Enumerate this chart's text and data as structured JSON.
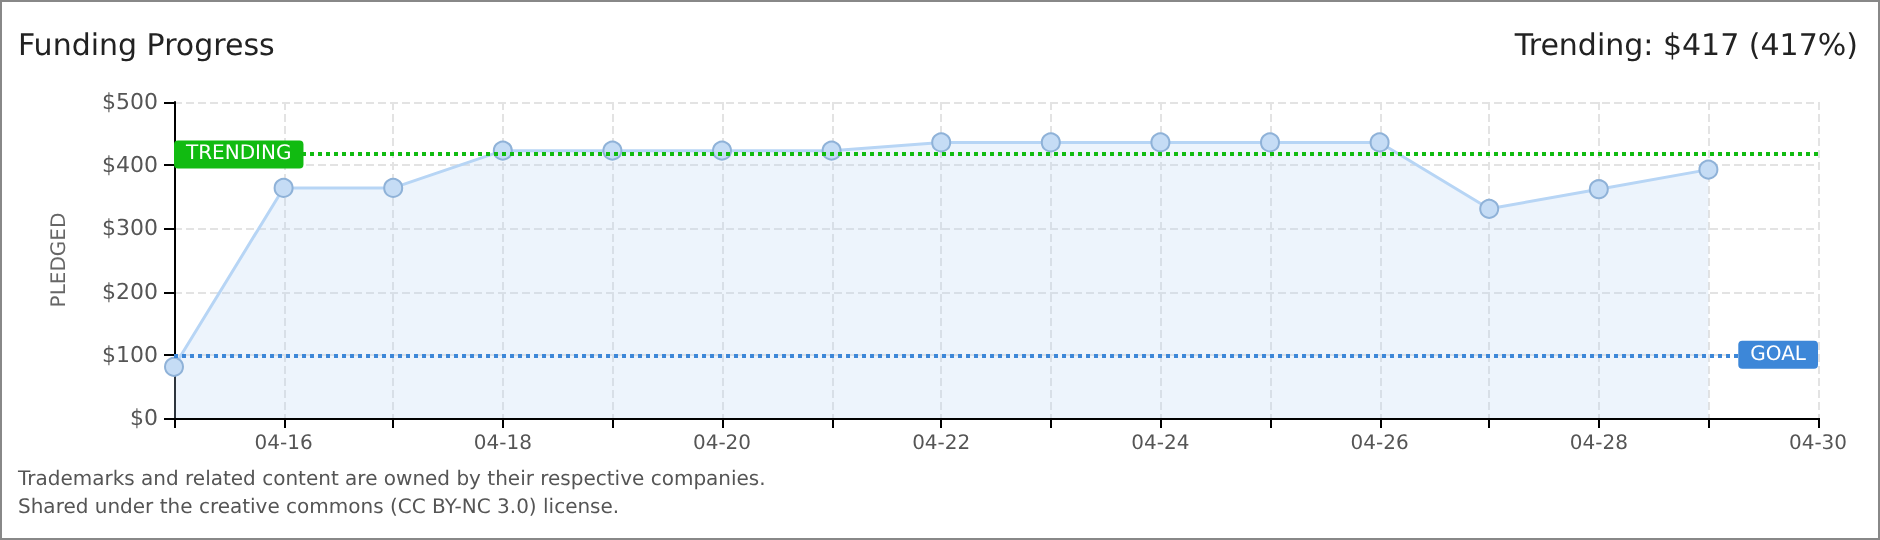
{
  "chart_data": {
    "type": "area",
    "title": "Funding Progress",
    "ylabel": "PLEDGED",
    "annotations": [
      "Trending: $417 (417%)",
      "Trademarks and related content are owned by their respective companies.",
      "Shared under the creative commons (CC BY-NC 3.0) license."
    ],
    "x": [
      "--04-15",
      "--04-16",
      "--04-17",
      "--04-18",
      "--04-19",
      "--04-20",
      "--04-21",
      "--04-22",
      "--04-23",
      "--04-24",
      "--04-25",
      "--04-26",
      "--04-27",
      "--04-28",
      "--04-29"
    ],
    "series": [
      {
        "color": "#b7d5f5",
        "values": [
          81,
          364,
          364,
          423,
          423,
          423,
          423,
          436,
          436,
          436,
          436,
          436,
          331,
          362,
          393
        ]
      }
    ],
    "xlim": [
      "--04-15",
      "--04-30"
    ],
    "xticks": [
      {
        "value": "--04-15",
        "label": null
      },
      {
        "value": "--04-16",
        "label": "04-16"
      },
      {
        "value": "--04-17",
        "label": null
      },
      {
        "value": "--04-18",
        "label": "04-18"
      },
      {
        "value": "--04-19",
        "label": null
      },
      {
        "value": "--04-20",
        "label": "04-20"
      },
      {
        "value": "--04-21",
        "label": null
      },
      {
        "value": "--04-22",
        "label": "04-22"
      },
      {
        "value": "--04-23",
        "label": null
      },
      {
        "value": "--04-24",
        "label": "04-24"
      },
      {
        "value": "--04-25",
        "label": null
      },
      {
        "value": "--04-26",
        "label": "04-26"
      },
      {
        "value": "--04-27",
        "label": null
      },
      {
        "value": "--04-28",
        "label": "04-28"
      },
      {
        "value": "--04-29",
        "label": null
      },
      {
        "value": "--04-30",
        "label": "04-30"
      }
    ],
    "ylim": [
      0,
      500
    ],
    "yticks": [
      {
        "value": 0,
        "label": "$0"
      },
      {
        "value": 100,
        "label": "$100"
      },
      {
        "value": 200,
        "label": "$200"
      },
      {
        "value": 300,
        "label": "$300"
      },
      {
        "value": 400,
        "label": "$400"
      },
      {
        "value": 500,
        "label": "$500"
      }
    ],
    "ref_lines": [
      {
        "axis": "y",
        "value": 417,
        "label": "TRENDING",
        "color": "#11bb11",
        "line_style": "dotted"
      },
      {
        "axis": "y",
        "value": 100,
        "label": "GOAL",
        "color": "#3d87d8",
        "line_style": "dotted"
      }
    ],
    "grid": true,
    "marker": "circle",
    "line_style": "solid"
  }
}
